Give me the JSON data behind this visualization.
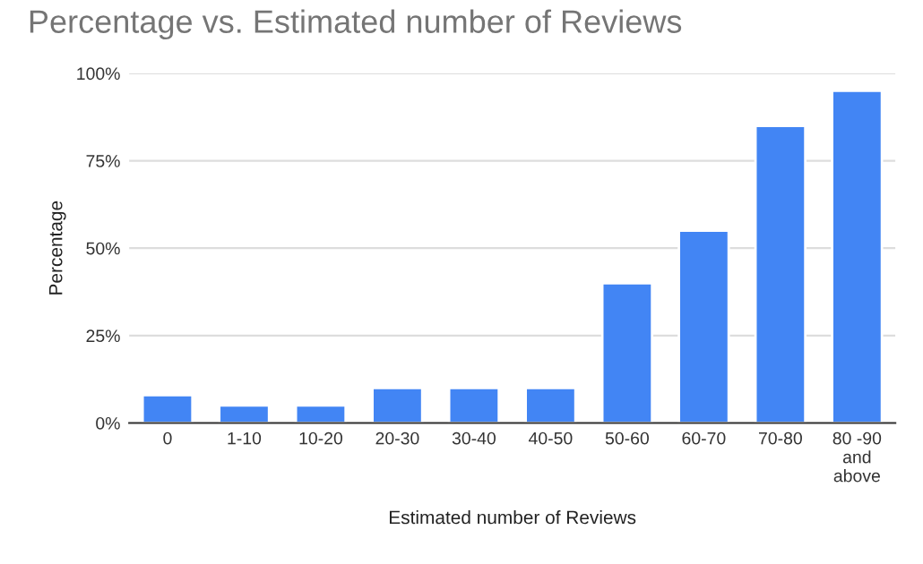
{
  "chart_data": {
    "type": "bar",
    "title": "Percentage vs. Estimated number of Reviews",
    "xlabel": "Estimated number of Reviews",
    "ylabel": "Percentage",
    "categories": [
      "0",
      "1-10",
      "10-20",
      "20-30",
      "30-40",
      "40-50",
      "50-60",
      "60-70",
      "70-80",
      "80 -90\nand\nabove"
    ],
    "values": [
      8,
      5,
      5,
      10,
      10,
      10,
      40,
      55,
      85,
      95
    ],
    "color": "#4285f4",
    "ylim": [
      0,
      100
    ],
    "yticks": [
      {
        "value": 0,
        "label": "0%"
      },
      {
        "value": 25,
        "label": "25%"
      },
      {
        "value": 50,
        "label": "50%"
      },
      {
        "value": 75,
        "label": "75%"
      },
      {
        "value": 100,
        "label": "100%"
      }
    ],
    "grid": "y"
  }
}
